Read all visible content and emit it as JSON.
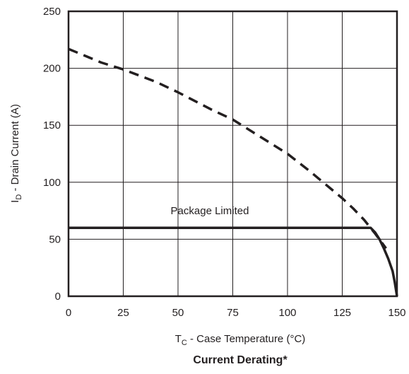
{
  "chart_data": {
    "type": "line",
    "title": "Current Derating*",
    "xlabel": {
      "prefix": "T",
      "sub": "C",
      "suffix": " - Case Temperature (°C)"
    },
    "ylabel": {
      "prefix": "I",
      "sub": "D",
      "suffix": " - Drain Current (A)"
    },
    "xlim": [
      0,
      150
    ],
    "ylim": [
      0,
      250
    ],
    "xticks": [
      0,
      25,
      50,
      75,
      100,
      125,
      150
    ],
    "yticks": [
      0,
      50,
      100,
      150,
      200,
      250
    ],
    "grid": true,
    "annotation": "Package Limited",
    "series": [
      {
        "style": "dashed",
        "color": "#231f20",
        "x": [
          0,
          15,
          25,
          40,
          50,
          65,
          75,
          85,
          100,
          110,
          120,
          125,
          130,
          135,
          140,
          145
        ],
        "y": [
          217,
          205,
          199,
          188,
          179,
          164,
          155,
          143,
          125,
          110,
          94,
          86,
          77,
          67,
          55,
          42
        ]
      },
      {
        "style": "solid",
        "color": "#231f20",
        "x": [
          0,
          138,
          140,
          142,
          144,
          146,
          148,
          149,
          150
        ],
        "y": [
          60,
          60,
          56,
          50,
          42,
          33,
          22,
          12,
          0
        ]
      }
    ]
  }
}
